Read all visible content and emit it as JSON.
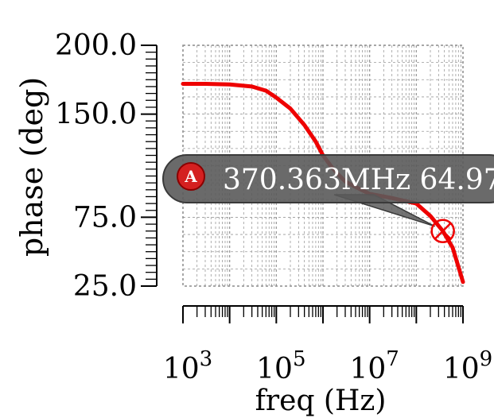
{
  "chart_data": {
    "type": "line",
    "title": "",
    "xlabel": "freq (Hz)",
    "ylabel": "phase (deg)",
    "x_scale": "log",
    "xlim": [
      1000,
      1000000000
    ],
    "ylim": [
      25,
      200
    ],
    "grid": true,
    "y_ticks": [
      {
        "value": 200,
        "label": "200.0"
      },
      {
        "value": 150,
        "label": "150.0"
      },
      {
        "value": 75,
        "label": "75.0"
      },
      {
        "value": 25,
        "label": "25.0"
      }
    ],
    "x_ticks": [
      {
        "value": 1000,
        "base": "10",
        "exp": "3"
      },
      {
        "value": 100000,
        "base": "10",
        "exp": "5"
      },
      {
        "value": 10000000,
        "base": "10",
        "exp": "7"
      },
      {
        "value": 1000000000,
        "base": "10",
        "exp": "9"
      }
    ],
    "series": [
      {
        "color": "#ee0000",
        "x": [
          1000,
          3000,
          10000,
          30000,
          60000,
          100000,
          200000,
          400000,
          700000,
          1000000,
          1500000,
          2000000,
          3000000,
          5000000,
          10000000,
          30000000,
          100000000,
          200000000,
          370363000,
          600000000,
          1000000000
        ],
        "y": [
          172,
          172,
          171.5,
          170,
          167,
          162,
          154,
          142,
          130,
          120,
          112,
          107,
          101,
          97,
          92,
          89,
          85,
          76,
          65,
          53,
          28
        ]
      }
    ],
    "annotations": [
      {
        "id": "A",
        "text": "370.363MHz 64.97",
        "x": 370363000,
        "y": 64.97
      }
    ]
  }
}
